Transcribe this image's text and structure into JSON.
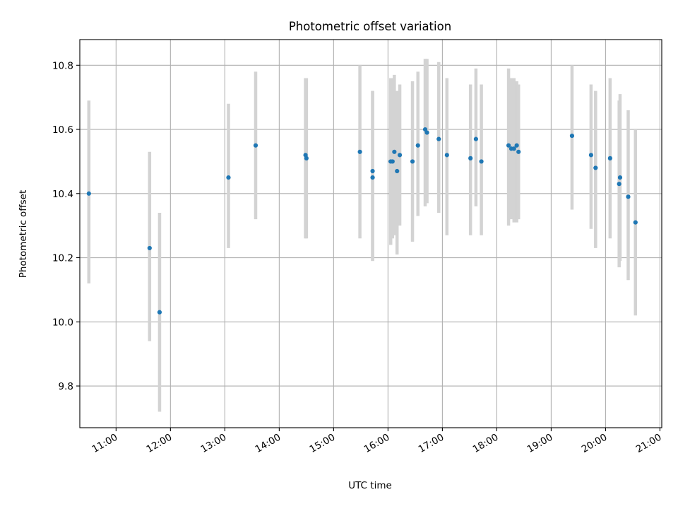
{
  "chart_data": {
    "type": "scatter",
    "title": "Photometric offset variation",
    "xlabel": "UTC time",
    "ylabel": "Photometric offset",
    "x_unit": "UTC hours",
    "xlim": [
      "10:20",
      "21:02"
    ],
    "ylim": [
      9.67,
      10.88
    ],
    "x_ticks": [
      "11:00",
      "12:00",
      "13:00",
      "14:00",
      "15:00",
      "16:00",
      "17:00",
      "18:00",
      "19:00",
      "20:00",
      "21:00"
    ],
    "y_ticks": [
      "9.8",
      "10.0",
      "10.2",
      "10.4",
      "10.6",
      "10.8"
    ],
    "grid": true,
    "colors": {
      "point": "#1f77b4",
      "errorbar": "#d3d3d3",
      "grid": "#b0b0b0"
    },
    "points": [
      {
        "x": "10:30",
        "y": 10.4,
        "lo": 10.12,
        "hi": 10.69
      },
      {
        "x": "11:37",
        "y": 10.23,
        "lo": 9.94,
        "hi": 10.53
      },
      {
        "x": "11:48",
        "y": 10.03,
        "lo": 9.72,
        "hi": 10.34
      },
      {
        "x": "13:04",
        "y": 10.45,
        "lo": 10.23,
        "hi": 10.68
      },
      {
        "x": "13:34",
        "y": 10.55,
        "lo": 10.32,
        "hi": 10.78
      },
      {
        "x": "14:29",
        "y": 10.52,
        "lo": 10.26,
        "hi": 10.76
      },
      {
        "x": "14:30",
        "y": 10.51,
        "lo": 10.26,
        "hi": 10.76
      },
      {
        "x": "15:29",
        "y": 10.53,
        "lo": 10.26,
        "hi": 10.8
      },
      {
        "x": "15:43",
        "y": 10.47,
        "lo": 10.19,
        "hi": 10.72
      },
      {
        "x": "15:43",
        "y": 10.45,
        "lo": 10.19,
        "hi": 10.72
      },
      {
        "x": "16:03",
        "y": 10.5,
        "lo": 10.24,
        "hi": 10.76
      },
      {
        "x": "16:05",
        "y": 10.5,
        "lo": 10.26,
        "hi": 10.76
      },
      {
        "x": "16:07",
        "y": 10.53,
        "lo": 10.27,
        "hi": 10.77
      },
      {
        "x": "16:10",
        "y": 10.47,
        "lo": 10.21,
        "hi": 10.72
      },
      {
        "x": "16:13",
        "y": 10.52,
        "lo": 10.3,
        "hi": 10.74
      },
      {
        "x": "16:27",
        "y": 10.5,
        "lo": 10.25,
        "hi": 10.75
      },
      {
        "x": "16:33",
        "y": 10.55,
        "lo": 10.33,
        "hi": 10.78
      },
      {
        "x": "16:41",
        "y": 10.6,
        "lo": 10.36,
        "hi": 10.82
      },
      {
        "x": "16:43",
        "y": 10.59,
        "lo": 10.37,
        "hi": 10.82
      },
      {
        "x": "16:56",
        "y": 10.57,
        "lo": 10.34,
        "hi": 10.81
      },
      {
        "x": "17:05",
        "y": 10.52,
        "lo": 10.27,
        "hi": 10.76
      },
      {
        "x": "17:31",
        "y": 10.51,
        "lo": 10.27,
        "hi": 10.74
      },
      {
        "x": "17:37",
        "y": 10.57,
        "lo": 10.36,
        "hi": 10.79
      },
      {
        "x": "17:43",
        "y": 10.5,
        "lo": 10.27,
        "hi": 10.74
      },
      {
        "x": "18:13",
        "y": 10.55,
        "lo": 10.3,
        "hi": 10.79
      },
      {
        "x": "18:16",
        "y": 10.54,
        "lo": 10.32,
        "hi": 10.76
      },
      {
        "x": "18:19",
        "y": 10.54,
        "lo": 10.31,
        "hi": 10.76
      },
      {
        "x": "18:22",
        "y": 10.55,
        "lo": 10.31,
        "hi": 10.75
      },
      {
        "x": "18:24",
        "y": 10.53,
        "lo": 10.32,
        "hi": 10.74
      },
      {
        "x": "19:23",
        "y": 10.58,
        "lo": 10.35,
        "hi": 10.8
      },
      {
        "x": "19:44",
        "y": 10.52,
        "lo": 10.29,
        "hi": 10.74
      },
      {
        "x": "19:49",
        "y": 10.48,
        "lo": 10.23,
        "hi": 10.72
      },
      {
        "x": "20:05",
        "y": 10.51,
        "lo": 10.26,
        "hi": 10.76
      },
      {
        "x": "20:15",
        "y": 10.43,
        "lo": 10.17,
        "hi": 10.69
      },
      {
        "x": "20:16",
        "y": 10.45,
        "lo": 10.19,
        "hi": 10.71
      },
      {
        "x": "20:25",
        "y": 10.39,
        "lo": 10.13,
        "hi": 10.66
      },
      {
        "x": "20:33",
        "y": 10.31,
        "lo": 10.02,
        "hi": 10.6
      }
    ]
  }
}
